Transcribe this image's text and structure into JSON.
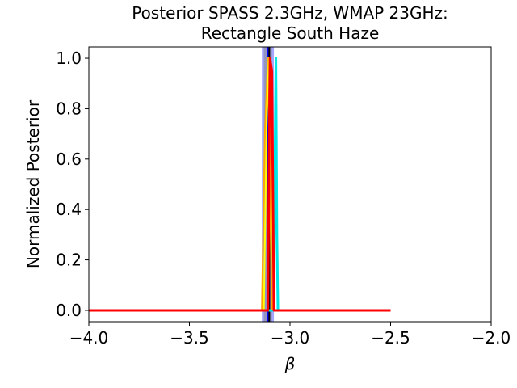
{
  "chart_data": {
    "type": "line",
    "title_line1": "Posterior SPASS 2.3GHz, WMAP 23GHz:",
    "title_line2": "Rectangle South Haze",
    "xlabel": "β",
    "ylabel": "Normalized Posterior",
    "xlim": [
      -4.0,
      -2.0
    ],
    "ylim": [
      -0.045,
      1.045
    ],
    "xticks": [
      -4.0,
      -3.5,
      -3.0,
      -2.5,
      -2.0
    ],
    "xtick_labels": [
      "−4.0",
      "−3.5",
      "−3.0",
      "−2.5",
      "−2.0"
    ],
    "yticks": [
      0.0,
      0.2,
      0.4,
      0.6,
      0.8,
      1.0
    ],
    "ytick_labels": [
      "0.0",
      "0.2",
      "0.4",
      "0.6",
      "0.8",
      "1.0"
    ],
    "grid": false,
    "bands": [
      {
        "x0": -3.14,
        "x1": -3.08,
        "color": "#0000ff",
        "opacity": 0.35
      },
      {
        "x0": -3.13,
        "x1": -3.09,
        "color": "#808080",
        "opacity": 0.5
      }
    ],
    "vlines": [
      {
        "x": -3.105,
        "color": "#000000",
        "width": 3
      },
      {
        "x": -3.11,
        "color": "#0000ff",
        "width": 1.5
      }
    ],
    "series": [
      {
        "color": "#00e5e5",
        "width": 3,
        "x": [
          -4.0,
          -3.08,
          -3.075,
          -3.07,
          -3.065,
          -3.06
        ],
        "y": [
          0.0,
          0.0,
          0.6,
          1.0,
          0.3,
          0.0
        ]
      },
      {
        "color": "#ffa500",
        "width": 2,
        "x": [
          -4.0,
          -3.14,
          -3.125,
          -3.11,
          -3.1,
          -3.09
        ],
        "y": [
          0.0,
          0.0,
          0.7,
          1.0,
          0.5,
          0.0
        ]
      },
      {
        "color": "#ffff00",
        "width": 2,
        "x": [
          -4.0,
          -3.13,
          -3.115,
          -3.105,
          -3.095,
          -3.08
        ],
        "y": [
          0.0,
          0.0,
          0.8,
          1.0,
          0.6,
          0.0
        ]
      },
      {
        "color": "#ff0000",
        "width": 3,
        "x": [
          -4.0,
          -3.11,
          -3.1,
          -3.09,
          -3.08,
          -2.5
        ],
        "y": [
          0.0,
          0.0,
          1.0,
          0.95,
          0.0,
          0.0
        ]
      }
    ]
  }
}
